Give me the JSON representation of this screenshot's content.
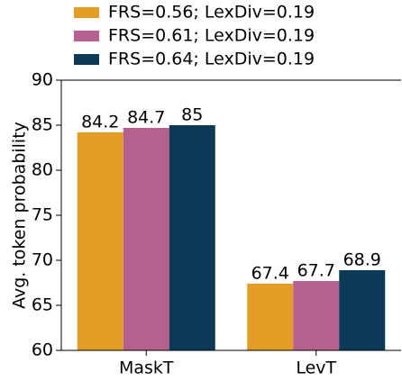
{
  "chart_data": {
    "type": "bar",
    "categories": [
      "MaskT",
      "LevT"
    ],
    "series": [
      {
        "name": "FRS=0.56; LexDiv=0.19",
        "color": "#e39c26",
        "values": [
          84.2,
          67.4
        ]
      },
      {
        "name": "FRS=0.61; LexDiv=0.19",
        "color": "#b5618e",
        "values": [
          84.7,
          67.7
        ]
      },
      {
        "name": "FRS=0.64; LexDiv=0.19",
        "color": "#0c3a56",
        "values": [
          85.0,
          68.9
        ]
      }
    ],
    "ylabel": "Avg. token probability",
    "ylim": [
      60,
      90
    ],
    "yticks": [
      60,
      65,
      70,
      75,
      80,
      85,
      90
    ],
    "legend": "top-left"
  }
}
